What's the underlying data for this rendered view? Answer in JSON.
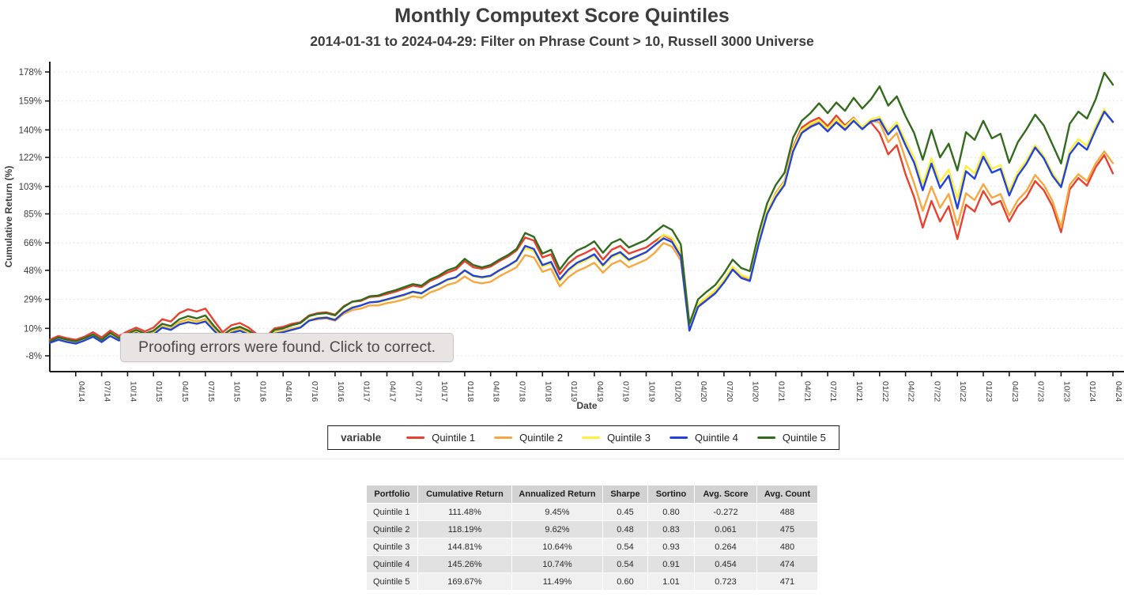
{
  "header": {
    "title": "Monthly Computext Score Quintiles",
    "subtitle": "2014-01-31 to 2024-04-29: Filter on Phrase Count > 10, Russell 3000 Universe"
  },
  "tooltip": {
    "text": "Proofing errors were found. Click to correct."
  },
  "colors": {
    "axis": "#1b1b1b",
    "grid": "#dcdcdc",
    "tick_label": "#3d3d3d",
    "title_text": "#3d3d3d",
    "tooltip_bg": "#e9e4e4",
    "table_header_bg": "#d2d2d2",
    "row_odd": "#f0f0f0",
    "row_even": "#e1e1e1"
  },
  "chart_data": {
    "type": "line",
    "title": "Monthly Computext Score Quintiles",
    "subtitle": "2014-01-31 to 2024-04-29: Filter on Phrase Count > 10, Russell 3000 Universe",
    "xlabel": "Date",
    "ylabel": "Cumulative Return (%)",
    "ylim": [
      -8,
      178
    ],
    "grid": "dotted-horizontal",
    "legend_title": "variable",
    "legend_position": "bottom",
    "y_ticks": [
      -8,
      10,
      29,
      48,
      66,
      85,
      103,
      122,
      140,
      159,
      178
    ],
    "y_tick_labels": [
      "-8%",
      "10%",
      "29%",
      "48%",
      "66%",
      "85%",
      "103%",
      "122%",
      "140%",
      "159%",
      "178%"
    ],
    "x_tick_labels": [
      "04/14",
      "07/14",
      "10/14",
      "01/15",
      "04/15",
      "07/15",
      "10/15",
      "01/16",
      "04/16",
      "07/16",
      "10/16",
      "01/17",
      "04/17",
      "07/17",
      "10/17",
      "01/18",
      "04/18",
      "07/18",
      "10/18",
      "01/19",
      "04/19",
      "07/19",
      "10/19",
      "01/20",
      "04/20",
      "07/20",
      "10/20",
      "01/21",
      "04/21",
      "07/21",
      "10/21",
      "01/22",
      "04/22",
      "07/22",
      "10/22",
      "01/23",
      "04/23",
      "07/23",
      "10/23",
      "01/24",
      "04/24"
    ],
    "x": [
      "2014-01",
      "2014-02",
      "2014-03",
      "2014-04",
      "2014-05",
      "2014-06",
      "2014-07",
      "2014-08",
      "2014-09",
      "2014-10",
      "2014-11",
      "2014-12",
      "2015-01",
      "2015-02",
      "2015-03",
      "2015-04",
      "2015-05",
      "2015-06",
      "2015-07",
      "2015-08",
      "2015-09",
      "2015-10",
      "2015-11",
      "2015-12",
      "2016-01",
      "2016-02",
      "2016-03",
      "2016-04",
      "2016-05",
      "2016-06",
      "2016-07",
      "2016-08",
      "2016-09",
      "2016-10",
      "2016-11",
      "2016-12",
      "2017-01",
      "2017-02",
      "2017-03",
      "2017-04",
      "2017-05",
      "2017-06",
      "2017-07",
      "2017-08",
      "2017-09",
      "2017-10",
      "2017-11",
      "2017-12",
      "2018-01",
      "2018-02",
      "2018-03",
      "2018-04",
      "2018-05",
      "2018-06",
      "2018-07",
      "2018-08",
      "2018-09",
      "2018-10",
      "2018-11",
      "2018-12",
      "2019-01",
      "2019-02",
      "2019-03",
      "2019-04",
      "2019-05",
      "2019-06",
      "2019-07",
      "2019-08",
      "2019-09",
      "2019-10",
      "2019-11",
      "2019-12",
      "2020-01",
      "2020-02",
      "2020-03",
      "2020-04",
      "2020-05",
      "2020-06",
      "2020-07",
      "2020-08",
      "2020-09",
      "2020-10",
      "2020-11",
      "2020-12",
      "2021-01",
      "2021-02",
      "2021-03",
      "2021-04",
      "2021-05",
      "2021-06",
      "2021-07",
      "2021-08",
      "2021-09",
      "2021-10",
      "2021-11",
      "2021-12",
      "2022-01",
      "2022-02",
      "2022-03",
      "2022-04",
      "2022-05",
      "2022-06",
      "2022-07",
      "2022-08",
      "2022-09",
      "2022-10",
      "2022-11",
      "2022-12",
      "2023-01",
      "2023-02",
      "2023-03",
      "2023-04",
      "2023-05",
      "2023-06",
      "2023-07",
      "2023-08",
      "2023-09",
      "2023-10",
      "2023-11",
      "2023-12",
      "2024-01",
      "2024-02",
      "2024-03",
      "2024-04"
    ],
    "series": [
      {
        "name": "Quintile 1",
        "color": "#e8412f",
        "values": [
          2.5,
          5.0,
          3.5,
          2.5,
          4.5,
          7.5,
          4.0,
          8.5,
          5.0,
          8.0,
          10.5,
          8.0,
          10.5,
          16.0,
          14.5,
          20.0,
          22.5,
          21.0,
          23.0,
          15.0,
          7.5,
          12.0,
          13.5,
          10.5,
          6.0,
          4.5,
          10.0,
          11.0,
          13.0,
          14.0,
          18.5,
          20.0,
          20.5,
          19.0,
          24.5,
          27.5,
          28.0,
          30.5,
          31.0,
          32.5,
          34.0,
          36.0,
          38.0,
          37.0,
          41.0,
          43.5,
          46.5,
          48.5,
          54.0,
          50.0,
          49.0,
          50.5,
          54.0,
          57.0,
          61.0,
          69.5,
          67.5,
          56.5,
          58.5,
          45.5,
          52.5,
          57.0,
          59.5,
          62.5,
          55.0,
          61.5,
          64.0,
          59.0,
          61.0,
          63.0,
          67.0,
          71.0,
          68.0,
          58.5,
          10.5,
          25.5,
          30.0,
          34.5,
          41.5,
          50.0,
          44.5,
          42.5,
          66.5,
          86.5,
          98.5,
          106.5,
          129.0,
          141.5,
          145.5,
          148.0,
          142.5,
          149.5,
          143.0,
          148.0,
          141.5,
          145.0,
          138.0,
          124.0,
          130.0,
          111.0,
          96.0,
          76.0,
          93.5,
          80.0,
          90.0,
          68.5,
          91.0,
          86.5,
          100.0,
          91.0,
          93.5,
          80.0,
          90.0,
          96.0,
          106.5,
          100.5,
          90.0,
          73.0,
          101.0,
          108.5,
          103.5,
          115.5,
          123.5,
          111.48
        ]
      },
      {
        "name": "Quintile 2",
        "color": "#f6a73f",
        "values": [
          1.5,
          3.5,
          2.0,
          1.0,
          3.0,
          5.5,
          2.0,
          6.0,
          3.0,
          5.5,
          8.0,
          5.5,
          7.0,
          11.5,
          10.0,
          14.0,
          16.0,
          14.5,
          16.0,
          10.0,
          4.5,
          8.5,
          10.0,
          7.5,
          3.5,
          2.0,
          7.5,
          8.5,
          10.0,
          11.0,
          15.0,
          16.0,
          16.5,
          15.0,
          19.5,
          22.0,
          23.0,
          25.0,
          25.0,
          26.5,
          27.5,
          29.0,
          31.0,
          30.0,
          33.5,
          35.5,
          38.5,
          40.0,
          44.0,
          40.5,
          39.5,
          40.5,
          44.0,
          47.0,
          50.0,
          58.0,
          56.5,
          47.0,
          49.0,
          37.5,
          43.5,
          47.5,
          50.0,
          53.0,
          46.5,
          52.0,
          54.5,
          50.0,
          52.5,
          55.0,
          59.5,
          66.0,
          63.5,
          54.5,
          10.0,
          25.0,
          29.5,
          34.0,
          41.0,
          49.5,
          44.0,
          42.0,
          66.0,
          86.0,
          97.0,
          105.0,
          127.0,
          139.0,
          143.0,
          145.5,
          140.0,
          146.0,
          141.0,
          146.5,
          141.0,
          146.0,
          145.0,
          132.0,
          138.0,
          121.0,
          105.0,
          87.0,
          103.0,
          89.0,
          98.0,
          77.5,
          98.5,
          94.0,
          104.5,
          95.5,
          98.0,
          84.0,
          94.0,
          100.0,
          110.5,
          104.0,
          93.5,
          76.0,
          104.0,
          111.0,
          106.5,
          118.0,
          126.0,
          118.19
        ]
      },
      {
        "name": "Quintile 3",
        "color": "#fdef3f",
        "values": [
          1.0,
          3.0,
          1.5,
          0.5,
          2.5,
          5.0,
          1.5,
          5.5,
          2.5,
          5.0,
          7.5,
          5.0,
          6.5,
          11.0,
          9.5,
          13.0,
          15.0,
          13.5,
          15.0,
          9.0,
          3.5,
          7.5,
          9.0,
          6.5,
          3.0,
          1.5,
          7.0,
          8.0,
          9.5,
          11.0,
          15.5,
          17.0,
          17.5,
          16.0,
          21.0,
          24.0,
          25.0,
          27.0,
          27.0,
          28.5,
          30.0,
          31.5,
          33.5,
          32.5,
          36.0,
          38.5,
          41.5,
          43.0,
          47.5,
          44.0,
          43.0,
          44.0,
          47.5,
          50.5,
          54.0,
          62.5,
          60.5,
          50.5,
          52.5,
          41.0,
          47.5,
          52.0,
          54.5,
          57.5,
          50.5,
          56.5,
          59.0,
          54.0,
          57.0,
          59.5,
          64.5,
          71.5,
          69.0,
          59.5,
          11.0,
          26.0,
          30.5,
          35.0,
          42.0,
          50.5,
          45.0,
          43.0,
          67.0,
          87.0,
          98.0,
          106.0,
          128.0,
          140.0,
          144.0,
          146.5,
          141.0,
          147.0,
          142.0,
          147.5,
          142.0,
          147.0,
          148.5,
          139.0,
          145.0,
          133.0,
          122.0,
          104.5,
          121.5,
          106.0,
          114.0,
          95.0,
          116.5,
          111.5,
          125.5,
          114.5,
          117.0,
          100.0,
          112.5,
          120.0,
          130.0,
          123.0,
          112.0,
          104.0,
          126.5,
          134.0,
          129.5,
          142.5,
          153.5,
          144.81
        ]
      },
      {
        "name": "Quintile 4",
        "color": "#2242dd",
        "values": [
          0.5,
          2.5,
          1.0,
          0.0,
          2.0,
          4.5,
          1.0,
          5.0,
          2.0,
          4.5,
          7.0,
          4.5,
          6.0,
          10.5,
          9.0,
          12.5,
          14.0,
          13.0,
          14.5,
          8.5,
          3.0,
          7.0,
          8.5,
          6.0,
          2.5,
          1.0,
          6.5,
          7.5,
          9.0,
          10.5,
          15.0,
          16.5,
          17.0,
          15.5,
          20.5,
          23.5,
          25.0,
          27.0,
          27.5,
          29.0,
          30.5,
          32.0,
          34.0,
          33.0,
          36.5,
          39.0,
          42.0,
          43.5,
          48.0,
          44.5,
          43.5,
          44.5,
          48.0,
          51.0,
          54.5,
          64.0,
          62.0,
          51.5,
          53.5,
          42.0,
          48.5,
          53.0,
          55.5,
          58.5,
          51.5,
          57.5,
          60.0,
          55.0,
          57.5,
          60.0,
          64.5,
          69.0,
          66.5,
          57.0,
          8.5,
          24.0,
          28.5,
          33.0,
          40.0,
          48.5,
          43.0,
          41.0,
          65.0,
          85.0,
          96.0,
          104.0,
          126.0,
          138.0,
          142.0,
          144.5,
          139.0,
          145.0,
          140.0,
          146.0,
          140.5,
          145.5,
          147.0,
          137.0,
          143.0,
          130.0,
          118.5,
          100.5,
          118.0,
          102.0,
          110.0,
          88.5,
          113.0,
          108.0,
          122.5,
          112.0,
          114.5,
          97.0,
          110.0,
          118.0,
          128.5,
          121.5,
          110.0,
          102.5,
          124.0,
          131.5,
          127.0,
          140.0,
          152.0,
          145.26
        ]
      },
      {
        "name": "Quintile 5",
        "color": "#336b1e",
        "values": [
          1.5,
          4.0,
          2.5,
          1.5,
          3.5,
          6.0,
          2.5,
          7.0,
          3.5,
          6.5,
          9.0,
          6.5,
          8.5,
          13.0,
          11.5,
          16.0,
          18.0,
          16.5,
          18.5,
          11.5,
          5.5,
          9.5,
          11.0,
          8.5,
          5.0,
          3.5,
          9.0,
          10.0,
          12.0,
          13.5,
          18.0,
          19.5,
          20.0,
          18.5,
          24.0,
          27.5,
          28.5,
          31.0,
          31.5,
          33.5,
          35.0,
          37.0,
          39.0,
          38.0,
          42.0,
          44.5,
          48.0,
          50.0,
          55.5,
          51.5,
          50.0,
          51.5,
          55.0,
          58.0,
          62.0,
          72.5,
          70.0,
          59.0,
          61.5,
          48.5,
          56.0,
          61.0,
          63.5,
          67.0,
          59.5,
          66.0,
          68.5,
          63.0,
          65.5,
          68.0,
          73.0,
          77.5,
          74.5,
          65.0,
          13.0,
          29.0,
          34.0,
          38.5,
          46.0,
          55.0,
          49.5,
          47.5,
          72.0,
          92.0,
          104.0,
          112.0,
          135.0,
          146.0,
          151.0,
          157.5,
          151.0,
          158.0,
          152.5,
          161.0,
          154.0,
          160.0,
          168.5,
          156.0,
          162.0,
          149.0,
          138.0,
          120.5,
          140.0,
          122.0,
          131.0,
          113.5,
          138.5,
          133.5,
          146.0,
          134.5,
          137.5,
          118.5,
          132.0,
          140.5,
          150.0,
          143.0,
          130.5,
          118.0,
          144.0,
          152.0,
          147.5,
          160.0,
          177.5,
          169.67
        ]
      }
    ]
  },
  "table": {
    "headers": [
      "Portfolio",
      "Cumulative Return",
      "Annualized Return",
      "Sharpe",
      "Sortino",
      "Avg. Score",
      "Avg. Count"
    ],
    "rows": [
      [
        "Quintile 1",
        "111.48%",
        "9.45%",
        "0.45",
        "0.80",
        "-0.272",
        "488"
      ],
      [
        "Quintile 2",
        "118.19%",
        "9.62%",
        "0.48",
        "0.83",
        "0.061",
        "475"
      ],
      [
        "Quintile 3",
        "144.81%",
        "10.64%",
        "0.54",
        "0.93",
        "0.264",
        "480"
      ],
      [
        "Quintile 4",
        "145.26%",
        "10.74%",
        "0.54",
        "0.91",
        "0.454",
        "474"
      ],
      [
        "Quintile 5",
        "169.67%",
        "11.49%",
        "0.60",
        "1.01",
        "0.723",
        "471"
      ]
    ]
  }
}
